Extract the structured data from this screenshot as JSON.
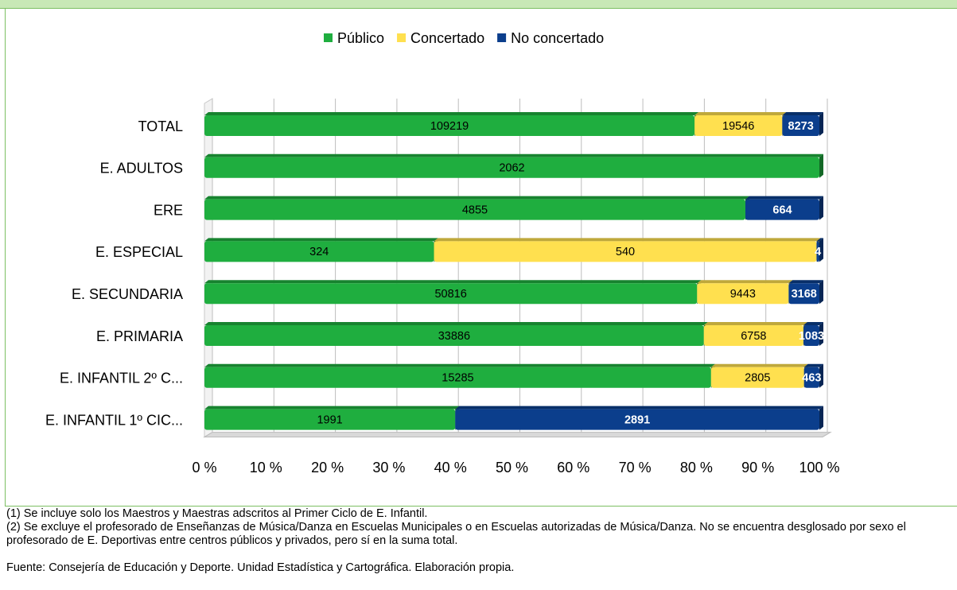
{
  "chart_data": {
    "type": "bar",
    "orientation": "horizontal",
    "stacking": "percent",
    "categories": [
      "TOTAL",
      "E. ADULTOS",
      "ERE",
      "E. ESPECIAL",
      "E. SECUNDARIA",
      "E. PRIMARIA",
      "E. INFANTIL 2º C...",
      "E. INFANTIL  1º CIC..."
    ],
    "series": [
      {
        "name": "Público",
        "color": "#1fae3f",
        "values": [
          109219,
          2062,
          4855,
          324,
          50816,
          33886,
          15285,
          1991
        ]
      },
      {
        "name": "Concertado",
        "color": "#ffe04f",
        "values": [
          19546,
          null,
          null,
          540,
          9443,
          6758,
          2805,
          null
        ]
      },
      {
        "name": "No concertado",
        "color": "#0b3e8c",
        "values": [
          8273,
          null,
          664,
          4,
          3168,
          1083,
          463,
          2891
        ]
      }
    ],
    "xlim": [
      0,
      100
    ],
    "xticks": [
      {
        "value": 0,
        "label": "0 %"
      },
      {
        "value": 10,
        "label": "10 %"
      },
      {
        "value": 20,
        "label": "20 %"
      },
      {
        "value": 30,
        "label": "30 %"
      },
      {
        "value": 40,
        "label": "40 %"
      },
      {
        "value": 50,
        "label": "50 %"
      },
      {
        "value": 60,
        "label": "60 %"
      },
      {
        "value": 70,
        "label": "70 %"
      },
      {
        "value": 80,
        "label": "80 %"
      },
      {
        "value": 90,
        "label": "90 %"
      },
      {
        "value": 100,
        "label": "100 %"
      }
    ],
    "grid": true,
    "legend": "top"
  },
  "notes": [
    "(1) Se incluye solo los Maestros y Maestras adscritos al Primer Ciclo de E. Infantil.",
    "(2) Se excluye el profesorado de Enseñanzas de Música/Danza en Escuelas Municipales o en Escuelas autorizadas de Música/Danza. No se encuentra desglosado por sexo el profesorado de E. Deportivas entre centros públicos y privados, pero sí en la suma total."
  ],
  "source": "Fuente: Consejería de Educación y Deporte. Unidad Estadística y Cartográfica. Elaboración propia."
}
